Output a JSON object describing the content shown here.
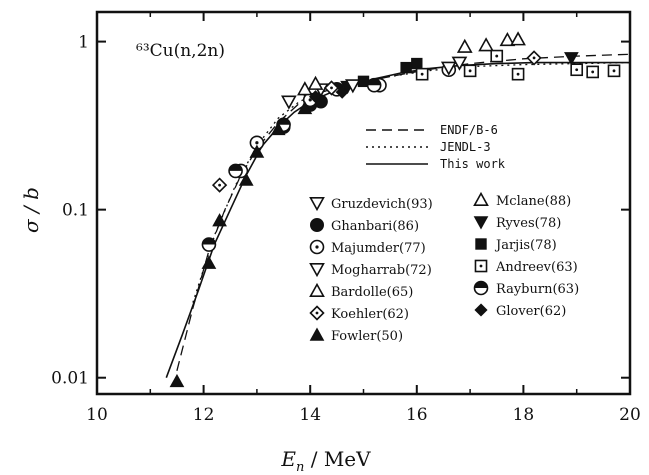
{
  "chart_data": {
    "type": "scatter",
    "title": "⁶³Cu(n,2n)",
    "xlabel": "E_n / MeV",
    "xlabel_main": "E",
    "xlabel_sub": "n",
    "xlabel_unit": " / MeV",
    "ylabel": "σ / b",
    "xlim": [
      10,
      20
    ],
    "ylim": [
      0.008,
      1.5
    ],
    "yscale": "log",
    "x_ticks": [
      10,
      12,
      14,
      16,
      18,
      20
    ],
    "y_ticks": [
      {
        "value": 1,
        "label": "1"
      },
      {
        "value": 0.1,
        "label": "0.1"
      },
      {
        "value": 0.01,
        "label": "0.01"
      }
    ],
    "lines": [
      {
        "name": "ENDF/B-6",
        "style": "dash",
        "x": [
          11.5,
          11.8,
          12.1,
          12.4,
          12.7,
          13.0,
          13.4,
          13.8,
          14.2,
          14.8,
          15.5,
          16.2,
          17.0,
          18.0,
          19.0,
          20.0
        ],
        "y": [
          0.011,
          0.026,
          0.057,
          0.1,
          0.16,
          0.23,
          0.33,
          0.43,
          0.5,
          0.56,
          0.62,
          0.68,
          0.74,
          0.79,
          0.82,
          0.84
        ]
      },
      {
        "name": "JENDL-3",
        "style": "dot",
        "x": [
          11.8,
          12.2,
          12.6,
          13.0,
          13.4,
          13.8,
          14.2,
          14.8,
          15.5,
          16.2,
          17.0,
          18.0,
          19.0,
          20.0
        ],
        "y": [
          0.028,
          0.07,
          0.14,
          0.24,
          0.35,
          0.44,
          0.5,
          0.56,
          0.62,
          0.67,
          0.71,
          0.73,
          0.74,
          0.75
        ]
      },
      {
        "name": "This work",
        "style": "solid",
        "x": [
          11.3,
          11.6,
          11.9,
          12.2,
          12.5,
          12.8,
          13.1,
          13.4,
          13.7,
          14.0,
          14.4,
          14.8,
          15.2,
          15.7,
          16.2,
          16.8,
          17.5,
          18.2,
          19.0,
          20.0
        ],
        "y": [
          0.01,
          0.018,
          0.033,
          0.062,
          0.1,
          0.16,
          0.24,
          0.31,
          0.38,
          0.44,
          0.5,
          0.55,
          0.6,
          0.65,
          0.69,
          0.72,
          0.74,
          0.75,
          0.75,
          0.75
        ]
      }
    ],
    "series": [
      {
        "name": "Gruzdevich(93)",
        "marker": "tri-down-open",
        "x": [
          13.6,
          14.2
        ],
        "y": [
          0.44,
          0.52
        ]
      },
      {
        "name": "Mclane(88)",
        "marker": "tri-up-open",
        "x": [
          16.9,
          17.3,
          17.7,
          17.9
        ],
        "y": [
          0.93,
          0.95,
          1.02,
          1.03
        ]
      },
      {
        "name": "Ghanbari(86)",
        "marker": "circle-filled",
        "x": [
          13.5,
          14.0,
          14.2
        ],
        "y": [
          0.31,
          0.42,
          0.44
        ]
      },
      {
        "name": "Ryves(78)",
        "marker": "tri-down-filled",
        "x": [
          14.0,
          14.7,
          18.9
        ],
        "y": [
          0.45,
          0.54,
          0.8
        ]
      },
      {
        "name": "Majumder(77)",
        "marker": "circle-dot",
        "x": [
          12.7,
          13.0,
          14.0,
          15.3,
          16.6
        ],
        "y": [
          0.17,
          0.25,
          0.45,
          0.55,
          0.68
        ]
      },
      {
        "name": "Jarjis(78)",
        "marker": "square-filled",
        "x": [
          15.0,
          15.8,
          16.0
        ],
        "y": [
          0.58,
          0.7,
          0.74
        ]
      },
      {
        "name": "Mogharrab(72)",
        "marker": "tri-down-open",
        "x": [
          14.8,
          16.6,
          16.8
        ],
        "y": [
          0.55,
          0.7,
          0.75
        ]
      },
      {
        "name": "Andreev(63)",
        "marker": "square-dot",
        "x": [
          16.1,
          17.0,
          17.5,
          17.9,
          19.0,
          19.3,
          19.7
        ],
        "y": [
          0.64,
          0.67,
          0.82,
          0.64,
          0.68,
          0.66,
          0.67
        ]
      },
      {
        "name": "Bardolle(65)",
        "marker": "tri-up-open",
        "x": [
          13.9,
          14.1
        ],
        "y": [
          0.52,
          0.56
        ]
      },
      {
        "name": "Rayburn(63)",
        "marker": "circle-half",
        "x": [
          12.1,
          12.6,
          13.5,
          14.5,
          15.2
        ],
        "y": [
          0.062,
          0.17,
          0.32,
          0.52,
          0.55
        ]
      },
      {
        "name": "Koehler(62)",
        "marker": "diamond-dot",
        "x": [
          12.3,
          14.4,
          18.2
        ],
        "y": [
          0.14,
          0.53,
          0.8
        ]
      },
      {
        "name": "Glover(62)",
        "marker": "diamond-filled",
        "x": [
          14.1,
          14.6
        ],
        "y": [
          0.47,
          0.5
        ]
      },
      {
        "name": "Fowler(50)",
        "marker": "tri-up-filled",
        "x": [
          11.5,
          12.1,
          12.3,
          12.8,
          13.0,
          13.4,
          13.9
        ],
        "y": [
          0.0095,
          0.048,
          0.086,
          0.15,
          0.22,
          0.3,
          0.4
        ]
      }
    ],
    "legend_lines": [
      "ENDF/B-6",
      "JENDL-3",
      "This work"
    ],
    "legend_markers_left": [
      "Gruzdevich(93)",
      "Ghanbari(86)",
      "Majumder(77)",
      "Mogharrab(72)",
      "Bardolle(65)",
      "Koehler(62)",
      "Fowler(50)"
    ],
    "legend_markers_right": [
      "Mclane(88)",
      "Ryves(78)",
      "Jarjis(78)",
      "Andreev(63)",
      "Rayburn(63)",
      "Glover(62)"
    ],
    "grid": false,
    "legend_placement": "center-right"
  }
}
